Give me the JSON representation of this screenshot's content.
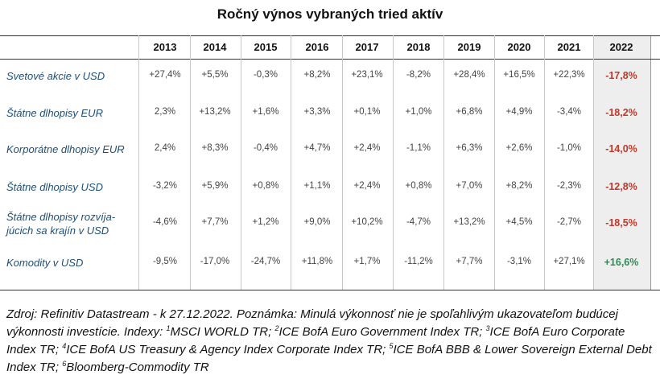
{
  "chart_data": {
    "type": "table",
    "title": "Ročný výnos vybraných tried aktív",
    "columns": [
      "2013",
      "2014",
      "2015",
      "2016",
      "2017",
      "2018",
      "2019",
      "2020",
      "2021",
      "2022"
    ],
    "highlight_column": "2022",
    "rows": [
      {
        "label": "Svetové akcie v USD",
        "values": [
          "+27,4%",
          "+5,5%",
          "-0,3%",
          "+8,2%",
          "+23,1%",
          "-8,2%",
          "+28,4%",
          "+16,5%",
          "+22,3%",
          "-17,8%"
        ]
      },
      {
        "label": "Štátne dlhopisy EUR",
        "values": [
          "2,3%",
          "+13,2%",
          "+1,6%",
          "+3,3%",
          "+0,1%",
          "+1,0%",
          "+6,8%",
          "+4,9%",
          "-3,4%",
          "-18,2%"
        ]
      },
      {
        "label": "Korporátne dlhopisy EUR",
        "values": [
          "2,4%",
          "+8,3%",
          "-0,4%",
          "+4,7%",
          "+2,4%",
          "-1,1%",
          "+6,3%",
          "+2,6%",
          "-1,0%",
          "-14,0%"
        ]
      },
      {
        "label": "Štátne dlhopisy USD",
        "values": [
          "-3,2%",
          "+5,9%",
          "+0,8%",
          "+1,1%",
          "+2,4%",
          "+0,8%",
          "+7,0%",
          "+8,2%",
          "-2,3%",
          "-12,8%"
        ]
      },
      {
        "label_lines": [
          "Štátne dlhopisy rozvíja-",
          "júcich sa krajín v USD"
        ],
        "values": [
          "-4,6%",
          "+7,7%",
          "+1,2%",
          "+9,0%",
          "+10,2%",
          "-4,7%",
          "+13,2%",
          "+4,5%",
          "-2,7%",
          "-18,5%"
        ]
      },
      {
        "label": "Komodity v USD",
        "values": [
          "-9,5%",
          "-17,0%",
          "-24,7%",
          "+11,8%",
          "+1,7%",
          "-11,2%",
          "+7,7%",
          "-3,1%",
          "+27,1%",
          "+16,6%"
        ]
      }
    ],
    "colors": {
      "negative_2022": "#c0392b",
      "positive_2022": "#2e8b57",
      "highlight_bg": "#eeeeee",
      "label_color": "#1f4e79"
    }
  },
  "footnote": {
    "p1": "Zdroj: Refinitiv Datastream - k 27.12.2022. Poznámka: Minulá výkonnosť nie je spoľahlivým ukazovateľom budúcej výkonnosti investície. Indexy: ",
    "s1": "1",
    "t1": "MSCI WORLD TR; ",
    "s2": "2",
    "t2": "ICE BofA Euro Government Index TR; ",
    "s3": "3",
    "t3": "ICE BofA Euro Corporate Index TR; ",
    "s4": "4",
    "t4": "ICE BofA US Treasury & Agency Index Corporate Index TR; ",
    "s5": "5",
    "t5": "ICE BofA BBB & Lower Sovereign External Debt Index TR; ",
    "s6": "6",
    "t6": "Bloomberg-Commodity TR"
  }
}
